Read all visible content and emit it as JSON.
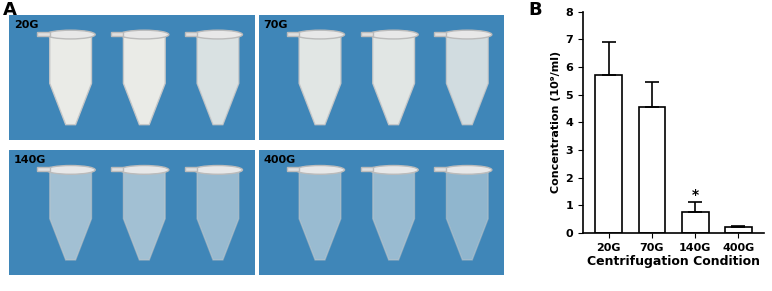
{
  "panel_labels": [
    "A",
    "B"
  ],
  "photos": {
    "labels": [
      "20G",
      "70G",
      "140G",
      "400G"
    ]
  },
  "chart_data": {
    "type": "bar",
    "categories": [
      "20G",
      "70G",
      "140G",
      "400G"
    ],
    "values": [
      5.7,
      4.55,
      0.75,
      0.2
    ],
    "error": [
      1.2,
      0.9,
      0.35,
      0.05
    ],
    "color": "#ffffff",
    "xlabel": "Centrifugation Condition",
    "ylabel": "Concentration (10⁹/ml)",
    "ylim": [
      0,
      8
    ],
    "yticks": [
      0,
      1,
      2,
      3,
      4,
      5,
      6,
      7,
      8
    ],
    "annotations": [
      {
        "text": "*",
        "category": "140G"
      }
    ],
    "grid": false
  }
}
